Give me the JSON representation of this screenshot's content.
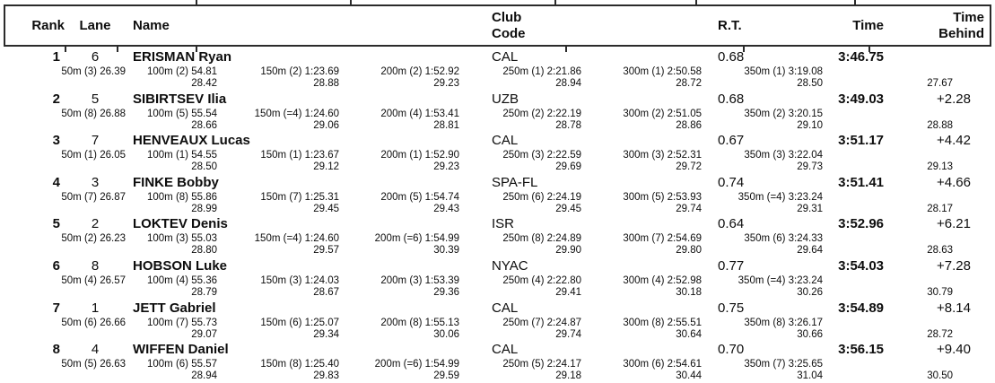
{
  "header": {
    "rank": "Rank",
    "lane": "Lane",
    "name": "Name",
    "club": "Club\nCode",
    "rt": "R.T.",
    "time": "Time",
    "behind": "Time\nBehind"
  },
  "rows": [
    {
      "rank": "1",
      "lane": "6",
      "name": "ERISMAN Ryan",
      "club": "CAL",
      "rt": "0.68",
      "time": "3:46.75",
      "behind": "",
      "splits": [
        {
          "dist": "50m",
          "place": "(3)",
          "time": "26.39",
          "lap": ""
        },
        {
          "dist": "100m",
          "place": "(2)",
          "time": "54.81",
          "lap": "28.42"
        },
        {
          "dist": "150m",
          "place": "(2)",
          "time": "1:23.69",
          "lap": "28.88"
        },
        {
          "dist": "200m",
          "place": "(2)",
          "time": "1:52.92",
          "lap": "29.23"
        },
        {
          "dist": "250m",
          "place": "(1)",
          "time": "2:21.86",
          "lap": "28.94"
        },
        {
          "dist": "300m",
          "place": "(1)",
          "time": "2:50.58",
          "lap": "28.72"
        },
        {
          "dist": "350m",
          "place": "(1)",
          "time": "3:19.08",
          "lap": "28.50"
        }
      ],
      "last_lap": "27.67"
    },
    {
      "rank": "2",
      "lane": "5",
      "name": "SIBIRTSEV Ilia",
      "club": "UZB",
      "rt": "0.68",
      "time": "3:49.03",
      "behind": "+2.28",
      "splits": [
        {
          "dist": "50m",
          "place": "(8)",
          "time": "26.88",
          "lap": ""
        },
        {
          "dist": "100m",
          "place": "(5)",
          "time": "55.54",
          "lap": "28.66"
        },
        {
          "dist": "150m",
          "place": "(=4)",
          "time": "1:24.60",
          "lap": "29.06"
        },
        {
          "dist": "200m",
          "place": "(4)",
          "time": "1:53.41",
          "lap": "28.81"
        },
        {
          "dist": "250m",
          "place": "(2)",
          "time": "2:22.19",
          "lap": "28.78"
        },
        {
          "dist": "300m",
          "place": "(2)",
          "time": "2:51.05",
          "lap": "28.86"
        },
        {
          "dist": "350m",
          "place": "(2)",
          "time": "3:20.15",
          "lap": "29.10"
        }
      ],
      "last_lap": "28.88"
    },
    {
      "rank": "3",
      "lane": "7",
      "name": "HENVEAUX Lucas",
      "club": "CAL",
      "rt": "0.67",
      "time": "3:51.17",
      "behind": "+4.42",
      "splits": [
        {
          "dist": "50m",
          "place": "(1)",
          "time": "26.05",
          "lap": ""
        },
        {
          "dist": "100m",
          "place": "(1)",
          "time": "54.55",
          "lap": "28.50"
        },
        {
          "dist": "150m",
          "place": "(1)",
          "time": "1:23.67",
          "lap": "29.12"
        },
        {
          "dist": "200m",
          "place": "(1)",
          "time": "1:52.90",
          "lap": "29.23"
        },
        {
          "dist": "250m",
          "place": "(3)",
          "time": "2:22.59",
          "lap": "29.69"
        },
        {
          "dist": "300m",
          "place": "(3)",
          "time": "2:52.31",
          "lap": "29.72"
        },
        {
          "dist": "350m",
          "place": "(3)",
          "time": "3:22.04",
          "lap": "29.73"
        }
      ],
      "last_lap": "29.13"
    },
    {
      "rank": "4",
      "lane": "3",
      "name": "FINKE Bobby",
      "club": "SPA-FL",
      "rt": "0.74",
      "time": "3:51.41",
      "behind": "+4.66",
      "splits": [
        {
          "dist": "50m",
          "place": "(7)",
          "time": "26.87",
          "lap": ""
        },
        {
          "dist": "100m",
          "place": "(8)",
          "time": "55.86",
          "lap": "28.99"
        },
        {
          "dist": "150m",
          "place": "(7)",
          "time": "1:25.31",
          "lap": "29.45"
        },
        {
          "dist": "200m",
          "place": "(5)",
          "time": "1:54.74",
          "lap": "29.43"
        },
        {
          "dist": "250m",
          "place": "(6)",
          "time": "2:24.19",
          "lap": "29.45"
        },
        {
          "dist": "300m",
          "place": "(5)",
          "time": "2:53.93",
          "lap": "29.74"
        },
        {
          "dist": "350m",
          "place": "(=4)",
          "time": "3:23.24",
          "lap": "29.31"
        }
      ],
      "last_lap": "28.17"
    },
    {
      "rank": "5",
      "lane": "2",
      "name": "LOKTEV Denis",
      "club": "ISR",
      "rt": "0.64",
      "time": "3:52.96",
      "behind": "+6.21",
      "splits": [
        {
          "dist": "50m",
          "place": "(2)",
          "time": "26.23",
          "lap": ""
        },
        {
          "dist": "100m",
          "place": "(3)",
          "time": "55.03",
          "lap": "28.80"
        },
        {
          "dist": "150m",
          "place": "(=4)",
          "time": "1:24.60",
          "lap": "29.57"
        },
        {
          "dist": "200m",
          "place": "(=6)",
          "time": "1:54.99",
          "lap": "30.39"
        },
        {
          "dist": "250m",
          "place": "(8)",
          "time": "2:24.89",
          "lap": "29.90"
        },
        {
          "dist": "300m",
          "place": "(7)",
          "time": "2:54.69",
          "lap": "29.80"
        },
        {
          "dist": "350m",
          "place": "(6)",
          "time": "3:24.33",
          "lap": "29.64"
        }
      ],
      "last_lap": "28.63"
    },
    {
      "rank": "6",
      "lane": "8",
      "name": "HOBSON Luke",
      "club": "NYAC",
      "rt": "0.77",
      "time": "3:54.03",
      "behind": "+7.28",
      "splits": [
        {
          "dist": "50m",
          "place": "(4)",
          "time": "26.57",
          "lap": ""
        },
        {
          "dist": "100m",
          "place": "(4)",
          "time": "55.36",
          "lap": "28.79"
        },
        {
          "dist": "150m",
          "place": "(3)",
          "time": "1:24.03",
          "lap": "28.67"
        },
        {
          "dist": "200m",
          "place": "(3)",
          "time": "1:53.39",
          "lap": "29.36"
        },
        {
          "dist": "250m",
          "place": "(4)",
          "time": "2:22.80",
          "lap": "29.41"
        },
        {
          "dist": "300m",
          "place": "(4)",
          "time": "2:52.98",
          "lap": "30.18"
        },
        {
          "dist": "350m",
          "place": "(=4)",
          "time": "3:23.24",
          "lap": "30.26"
        }
      ],
      "last_lap": "30.79"
    },
    {
      "rank": "7",
      "lane": "1",
      "name": "JETT Gabriel",
      "club": "CAL",
      "rt": "0.75",
      "time": "3:54.89",
      "behind": "+8.14",
      "splits": [
        {
          "dist": "50m",
          "place": "(6)",
          "time": "26.66",
          "lap": ""
        },
        {
          "dist": "100m",
          "place": "(7)",
          "time": "55.73",
          "lap": "29.07"
        },
        {
          "dist": "150m",
          "place": "(6)",
          "time": "1:25.07",
          "lap": "29.34"
        },
        {
          "dist": "200m",
          "place": "(8)",
          "time": "1:55.13",
          "lap": "30.06"
        },
        {
          "dist": "250m",
          "place": "(7)",
          "time": "2:24.87",
          "lap": "29.74"
        },
        {
          "dist": "300m",
          "place": "(8)",
          "time": "2:55.51",
          "lap": "30.64"
        },
        {
          "dist": "350m",
          "place": "(8)",
          "time": "3:26.17",
          "lap": "30.66"
        }
      ],
      "last_lap": "28.72"
    },
    {
      "rank": "8",
      "lane": "4",
      "name": "WIFFEN Daniel",
      "club": "CAL",
      "rt": "0.70",
      "time": "3:56.15",
      "behind": "+9.40",
      "splits": [
        {
          "dist": "50m",
          "place": "(5)",
          "time": "26.63",
          "lap": ""
        },
        {
          "dist": "100m",
          "place": "(6)",
          "time": "55.57",
          "lap": "28.94"
        },
        {
          "dist": "150m",
          "place": "(8)",
          "time": "1:25.40",
          "lap": "29.83"
        },
        {
          "dist": "200m",
          "place": "(=6)",
          "time": "1:54.99",
          "lap": "29.59"
        },
        {
          "dist": "250m",
          "place": "(5)",
          "time": "2:24.17",
          "lap": "29.18"
        },
        {
          "dist": "300m",
          "place": "(6)",
          "time": "2:54.61",
          "lap": "30.44"
        },
        {
          "dist": "350m",
          "place": "(7)",
          "time": "3:25.65",
          "lap": "31.04"
        }
      ],
      "last_lap": "30.50"
    }
  ]
}
